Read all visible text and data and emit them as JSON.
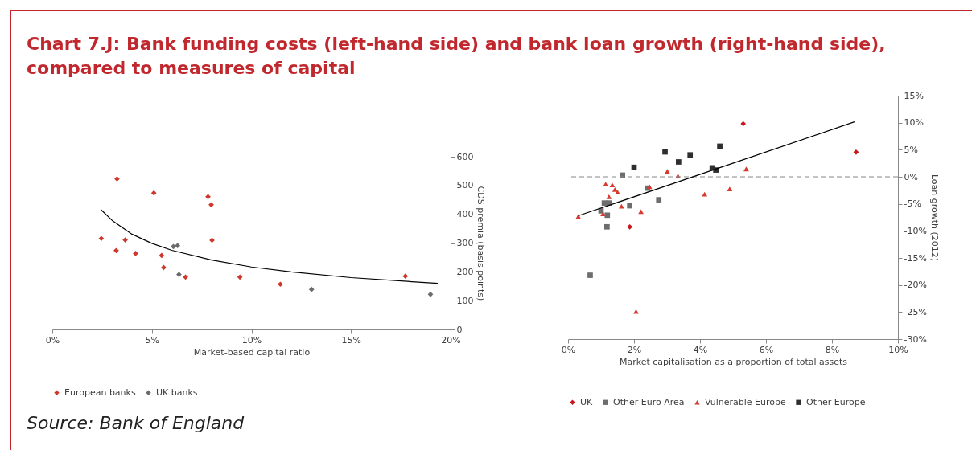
{
  "chart_data": [
    {
      "type": "scatter",
      "title": "Chart 7.J: Bank funding costs (left-hand side) and bank loan growth (right-hand side), compared to measures of capital",
      "xlabel": "Market-based capital ratio",
      "ylabel": "CDS premia (basis points)",
      "annotations": [
        "Source: Bank of England"
      ],
      "xlim": [
        0,
        20
      ],
      "xticks": [
        {
          "value": 0,
          "label": "0%"
        },
        {
          "value": 5,
          "label": "5%"
        },
        {
          "value": 10,
          "label": "10%"
        },
        {
          "value": 15,
          "label": "15%"
        },
        {
          "value": 20,
          "label": "20%"
        }
      ],
      "ylim": [
        0,
        600
      ],
      "yticks": [
        0,
        100,
        200,
        300,
        400,
        500,
        600
      ],
      "grid": false,
      "legend": "bottom",
      "marker": "diamond",
      "series": [
        {
          "name": "European banks",
          "type": "scatter",
          "color": "#d0362c",
          "x": [
            3.25,
            5.1,
            7.82,
            7.98,
            2.46,
            3.66,
            8.02,
            3.21,
            4.18,
            5.49,
            5.59,
            6.69,
            9.42,
            11.45,
            17.73
          ],
          "values": [
            523,
            474,
            461,
            433,
            316,
            311,
            310,
            274,
            264,
            257,
            215,
            182,
            182,
            157,
            185
          ]
        },
        {
          "name": "UK banks",
          "type": "scatter",
          "color": "#6b6b6b",
          "x": [
            6.08,
            6.29,
            6.36,
            13.02,
            18.99
          ],
          "values": [
            288,
            291,
            191,
            139,
            122
          ]
        },
        {
          "type": "line",
          "color": "#000000",
          "marker": "none",
          "x": [
            2.46,
            3,
            4,
            5,
            6,
            8,
            10,
            12,
            15,
            19.35
          ],
          "values": [
            415,
            379,
            331,
            299,
            275,
            241,
            217,
            200,
            180,
            160
          ]
        }
      ]
    },
    {
      "type": "scatter",
      "xlabel": "Market capitalisation as a proportion  of total assets",
      "ylabel": "Loan growth (2012)",
      "xlim": [
        0,
        10
      ],
      "xticks": [
        {
          "value": 0,
          "label": "0%"
        },
        {
          "value": 2,
          "label": "2%"
        },
        {
          "value": 4,
          "label": "4%"
        },
        {
          "value": 6,
          "label": "6%"
        },
        {
          "value": 8,
          "label": "8%"
        },
        {
          "value": 10,
          "label": "10%"
        }
      ],
      "ylim": [
        -30,
        15
      ],
      "yticks": [
        {
          "value": -30,
          "label": "-30%"
        },
        {
          "value": -25,
          "label": "-25%"
        },
        {
          "value": -20,
          "label": "-20%"
        },
        {
          "value": -15,
          "label": "-15%"
        },
        {
          "value": -10,
          "label": "-10%"
        },
        {
          "value": -5,
          "label": "-5%"
        },
        {
          "value": 0,
          "label": "0%"
        },
        {
          "value": 5,
          "label": "5%"
        },
        {
          "value": 10,
          "label": "10%"
        },
        {
          "value": 15,
          "label": "15%"
        }
      ],
      "grid": false,
      "legend": "bottom",
      "ref_lines": [
        {
          "axis": "y",
          "value": 0,
          "color": "#888888",
          "line_style": "dashed"
        }
      ],
      "series": [
        {
          "name": "UK",
          "type": "scatter",
          "marker": "diamond",
          "color": "#c8161d",
          "x": [
            5.31,
            8.73,
            1.87
          ],
          "values": [
            9.8,
            4.55,
            -9.25
          ]
        },
        {
          "name": "Other Euro Area",
          "type": "scatter",
          "marker": "square",
          "color": "#6d6d6d",
          "x": [
            1.65,
            1.1,
            1.24,
            1.0,
            1.19,
            1.18,
            1.87,
            2.4,
            2.75,
            0.67
          ],
          "values": [
            0.3,
            -4.85,
            -4.85,
            -6.3,
            -7.1,
            -9.25,
            -5.35,
            -2.1,
            -4.25,
            -18.2
          ]
        },
        {
          "name": "Vulnerable Europe",
          "type": "scatter",
          "marker": "triangle",
          "color": "#d63a2f",
          "x": [
            0.31,
            1.06,
            1.14,
            1.34,
            1.24,
            1.42,
            1.5,
            1.62,
            2.21,
            2.47,
            3.01,
            3.33,
            4.14,
            4.9,
            5.4,
            2.06
          ],
          "values": [
            -7.35,
            -6.85,
            -1.35,
            -1.5,
            -3.7,
            -2.35,
            -2.85,
            -5.45,
            -6.45,
            -1.85,
            1.0,
            0.15,
            -3.2,
            -2.25,
            1.45,
            -24.9
          ]
        },
        {
          "name": "Other Europe",
          "type": "scatter",
          "marker": "square",
          "color": "#2e2e2e",
          "x": [
            2.0,
            2.94,
            3.35,
            3.7,
            4.6,
            4.37,
            4.48
          ],
          "values": [
            1.75,
            4.6,
            2.75,
            4.05,
            5.65,
            1.65,
            1.25
          ]
        },
        {
          "type": "line",
          "color": "#000000",
          "marker": "none",
          "x": [
            0.31,
            8.68
          ],
          "values": [
            -7.2,
            10.15
          ]
        }
      ]
    }
  ]
}
